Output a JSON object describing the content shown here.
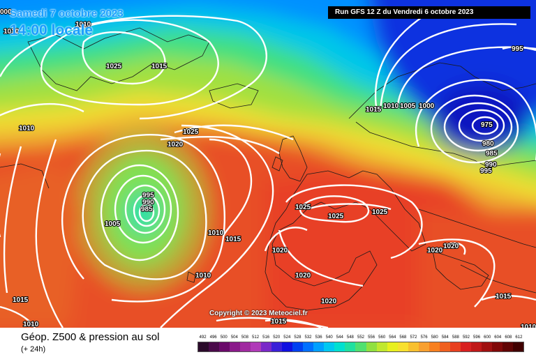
{
  "header": {
    "date": "Samedi 7 octobre 2023",
    "time": "14:00 locale",
    "run_info": "Run GFS 12 Z du Vendredi 6 octobre 2023"
  },
  "copyright": "Copyright © 2023 Meteociel.fr",
  "legend": {
    "title": "Géop. Z500 & pression au sol",
    "subtitle": "(+ 24h)",
    "scale_values": [
      "492",
      "496",
      "500",
      "504",
      "508",
      "512",
      "516",
      "520",
      "524",
      "528",
      "532",
      "536",
      "540",
      "544",
      "548",
      "552",
      "556",
      "560",
      "564",
      "568",
      "572",
      "576",
      "580",
      "584",
      "588",
      "592",
      "596",
      "600",
      "604",
      "608",
      "612"
    ],
    "scale_colors": [
      "#2a0a2a",
      "#4a0a4a",
      "#6a0a6a",
      "#8a1a8a",
      "#a02aa0",
      "#b03ab8",
      "#7a28c8",
      "#3a20d8",
      "#1010e0",
      "#0040f0",
      "#0070ff",
      "#00a0ff",
      "#00c8f0",
      "#00e0d0",
      "#20e0a0",
      "#50e070",
      "#90e040",
      "#c0e830",
      "#e8f020",
      "#f8e030",
      "#f8c030",
      "#f8a030",
      "#f88020",
      "#f06020",
      "#e84020",
      "#d82020",
      "#c01818",
      "#a01010",
      "#800808",
      "#600404",
      "#400000"
    ]
  },
  "isobar_labels": [
    "1010",
    "1015",
    "1025",
    "1015",
    "1025",
    "1020",
    "1010",
    "995",
    "990",
    "985",
    "1005",
    "1000",
    "1010",
    "1015",
    "1010",
    "1020",
    "1020",
    "1025",
    "1025",
    "1025",
    "1020",
    "1020",
    "1015",
    "1015",
    "1010",
    "1015",
    "1010",
    "1005",
    "1000",
    "995",
    "975",
    "980",
    "985",
    "990",
    "995",
    "1020",
    "1020",
    "1020",
    "1015",
    "1010",
    "1010",
    "000"
  ],
  "isobar_label_visible_note": ""
}
